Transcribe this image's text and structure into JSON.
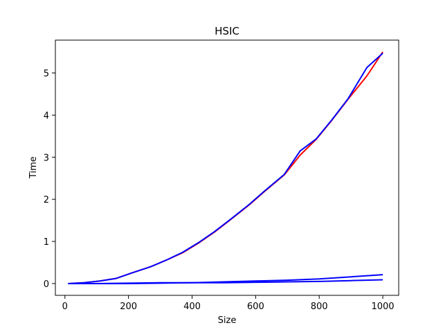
{
  "chart_data": {
    "type": "line",
    "title": "HSIC",
    "xlabel": "Size",
    "ylabel": "Time",
    "xlim": [
      -30,
      1050
    ],
    "ylim": [
      -0.28,
      5.78
    ],
    "xticks": [
      0,
      200,
      400,
      600,
      800,
      1000
    ],
    "yticks": [
      0,
      1,
      2,
      3,
      4,
      5
    ],
    "grid": false,
    "legend": "none",
    "series": [
      {
        "color": "#ff0000",
        "x": [
          10,
          60,
          110,
          160,
          210,
          270,
          320,
          370,
          420,
          470,
          520,
          580,
          630,
          690,
          740,
          790,
          840,
          890,
          950,
          1000
        ],
        "y": [
          0.0,
          0.02,
          0.06,
          0.12,
          0.25,
          0.4,
          0.56,
          0.73,
          0.96,
          1.22,
          1.51,
          1.87,
          2.2,
          2.58,
          3.05,
          3.42,
          3.88,
          4.37,
          4.93,
          5.5
        ]
      },
      {
        "color": "#0000ff",
        "x": [
          10,
          60,
          110,
          160,
          210,
          270,
          320,
          370,
          420,
          470,
          520,
          580,
          630,
          690,
          740,
          790,
          840,
          890,
          950,
          1000
        ],
        "y": [
          0.0,
          0.02,
          0.06,
          0.12,
          0.25,
          0.4,
          0.56,
          0.74,
          0.97,
          1.23,
          1.52,
          1.88,
          2.21,
          2.59,
          3.15,
          3.43,
          3.89,
          4.38,
          5.13,
          5.47
        ]
      },
      {
        "color": "#0000ff",
        "x": [
          10,
          100,
          200,
          300,
          400,
          500,
          600,
          700,
          800,
          900,
          1000
        ],
        "y": [
          0.0,
          0.0,
          0.01,
          0.02,
          0.02,
          0.04,
          0.06,
          0.08,
          0.11,
          0.16,
          0.21
        ]
      },
      {
        "color": "#0000ff",
        "x": [
          10,
          100,
          200,
          300,
          400,
          500,
          600,
          700,
          800,
          900,
          1000
        ],
        "y": [
          0.0,
          0.0,
          0.0,
          0.01,
          0.02,
          0.02,
          0.03,
          0.04,
          0.05,
          0.07,
          0.09
        ]
      }
    ]
  }
}
